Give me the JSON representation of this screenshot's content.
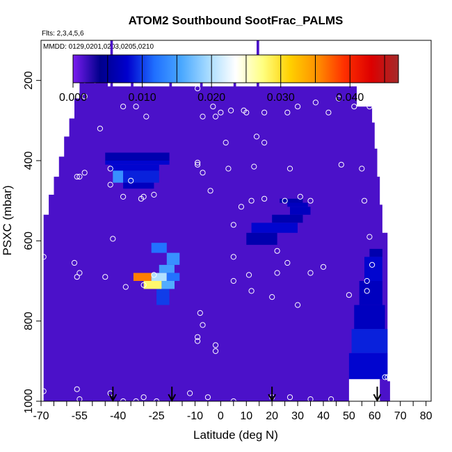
{
  "chart_data": {
    "type": "heatmap",
    "title": "ATOM2 Southbound SootFrac_PALMS",
    "subtitle": "Flts: 2,3,4,5,6",
    "annotation": "MMDD: 0129,0201,0203,0205,0210",
    "xlabel": "Latitude (deg N)",
    "ylabel": "PSXC (mbar)",
    "xlim": [
      -70,
      82
    ],
    "ylim": [
      1000,
      100
    ],
    "x_ticks": [
      -70,
      -55,
      -40,
      -25,
      -10,
      0,
      10,
      20,
      30,
      40,
      50,
      60,
      70,
      80
    ],
    "x_tick_labels": [
      "-70",
      "-55",
      "-40",
      "-25",
      "-10",
      "0",
      "10",
      "20",
      "30",
      "40",
      "50",
      "60",
      "70",
      "80"
    ],
    "y_ticks": [
      200,
      400,
      600,
      800,
      1000
    ],
    "y_tick_labels": [
      "200",
      "400",
      "600",
      "800",
      "1000"
    ],
    "colorbar": {
      "min": 0.0,
      "max": 0.047,
      "ticks": [
        0.0,
        0.01,
        0.02,
        0.03,
        0.04
      ],
      "tick_labels": [
        "0.000",
        "0.010",
        "0.020",
        "0.030",
        "0.040"
      ],
      "boundaries": [
        0.0,
        0.005,
        0.01,
        0.015,
        0.02,
        0.025,
        0.03,
        0.035,
        0.04,
        0.045
      ],
      "colors": [
        "#7a1cf0",
        "#00008b",
        "#0000cd",
        "#1f6fff",
        "#4aa8ff",
        "#a8dcff",
        "#ffffff",
        "#ffff80",
        "#ffd000",
        "#ff9000",
        "#ff3000",
        "#dd0000",
        "#a52a2a"
      ]
    },
    "background_value": 0.0015,
    "base_region": [
      [
        -69,
        1000
      ],
      [
        -69,
        535
      ],
      [
        -67,
        535
      ],
      [
        -67,
        485
      ],
      [
        -65,
        485
      ],
      [
        -65,
        440
      ],
      [
        -63,
        440
      ],
      [
        -63,
        390
      ],
      [
        -61,
        390
      ],
      [
        -61,
        340
      ],
      [
        -59,
        340
      ],
      [
        -59,
        295
      ],
      [
        -57,
        295
      ],
      [
        -57,
        245
      ],
      [
        -55,
        245
      ],
      [
        -55,
        200
      ],
      [
        -53,
        200
      ],
      [
        -53,
        165
      ],
      [
        -45,
        165
      ],
      [
        -45,
        195
      ],
      [
        -44,
        195
      ],
      [
        -44,
        215
      ],
      [
        -43,
        215
      ],
      [
        -43,
        100
      ],
      [
        -42,
        100
      ],
      [
        -42,
        215
      ],
      [
        -35,
        215
      ],
      [
        -35,
        180
      ],
      [
        -34,
        180
      ],
      [
        -34,
        215
      ],
      [
        -20,
        215
      ],
      [
        -20,
        180
      ],
      [
        -19,
        180
      ],
      [
        -19,
        215
      ],
      [
        -8,
        215
      ],
      [
        -8,
        195
      ],
      [
        -7,
        195
      ],
      [
        -7,
        215
      ],
      [
        5,
        215
      ],
      [
        5,
        180
      ],
      [
        6,
        180
      ],
      [
        6,
        215
      ],
      [
        14,
        215
      ],
      [
        14,
        100
      ],
      [
        15,
        100
      ],
      [
        15,
        215
      ],
      [
        53,
        215
      ],
      [
        53,
        265
      ],
      [
        59,
        265
      ],
      [
        59,
        305
      ],
      [
        60,
        305
      ],
      [
        60,
        370
      ],
      [
        61,
        370
      ],
      [
        61,
        440
      ],
      [
        62,
        440
      ],
      [
        62,
        510
      ],
      [
        63,
        510
      ],
      [
        63,
        580
      ],
      [
        65,
        580
      ],
      [
        65,
        950
      ],
      [
        66,
        950
      ],
      [
        66,
        1000
      ]
    ],
    "white_regions": [
      [
        [
          50,
          1000
        ],
        [
          50,
          945
        ],
        [
          62,
          945
        ],
        [
          62,
          1000
        ]
      ]
    ],
    "cells": [
      {
        "lat": [
          -45,
          -20
        ],
        "p": [
          380,
          400
        ],
        "value": 0.006
      },
      {
        "lat": [
          -45,
          -20
        ],
        "p": [
          400,
          410
        ],
        "value": 0.008
      },
      {
        "lat": [
          -43,
          -24
        ],
        "p": [
          410,
          425
        ],
        "value": 0.008
      },
      {
        "lat": [
          -42,
          -38
        ],
        "p": [
          425,
          455
        ],
        "value": 0.014
      },
      {
        "lat": [
          -38,
          -24
        ],
        "p": [
          425,
          455
        ],
        "value": 0.009
      },
      {
        "lat": [
          -38,
          -26
        ],
        "p": [
          455,
          470
        ],
        "value": 0.007
      },
      {
        "lat": [
          23,
          32
        ],
        "p": [
          495,
          505
        ],
        "value": 0.006
      },
      {
        "lat": [
          26,
          34
        ],
        "p": [
          505,
          515
        ],
        "value": 0.007
      },
      {
        "lat": [
          27,
          35
        ],
        "p": [
          515,
          535
        ],
        "value": 0.007
      },
      {
        "lat": [
          20,
          32
        ],
        "p": [
          535,
          555
        ],
        "value": 0.006
      },
      {
        "lat": [
          12,
          30
        ],
        "p": [
          555,
          580
        ],
        "value": 0.008
      },
      {
        "lat": [
          10,
          22
        ],
        "p": [
          580,
          610
        ],
        "value": 0.006
      },
      {
        "lat": [
          -27,
          -21
        ],
        "p": [
          605,
          630
        ],
        "value": 0.012
      },
      {
        "lat": [
          -21,
          -16
        ],
        "p": [
          630,
          660
        ],
        "value": 0.014
      },
      {
        "lat": [
          -24,
          -18
        ],
        "p": [
          660,
          680
        ],
        "value": 0.015
      },
      {
        "lat": [
          -34,
          -27
        ],
        "p": [
          680,
          700
        ],
        "value": 0.036
      },
      {
        "lat": [
          -27,
          -21
        ],
        "p": [
          680,
          700
        ],
        "value": 0.02
      },
      {
        "lat": [
          -21,
          -16
        ],
        "p": [
          680,
          700
        ],
        "value": 0.012
      },
      {
        "lat": [
          -30,
          -23
        ],
        "p": [
          700,
          720
        ],
        "value": 0.028
      },
      {
        "lat": [
          -23,
          -18
        ],
        "p": [
          700,
          720
        ],
        "value": 0.016
      },
      {
        "lat": [
          -25,
          -20
        ],
        "p": [
          720,
          760
        ],
        "value": 0.01
      },
      {
        "lat": [
          58,
          63
        ],
        "p": [
          620,
          640
        ],
        "value": 0.006
      },
      {
        "lat": [
          56,
          63
        ],
        "p": [
          640,
          700
        ],
        "value": 0.008
      },
      {
        "lat": [
          54,
          63
        ],
        "p": [
          700,
          760
        ],
        "value": 0.007
      },
      {
        "lat": [
          52,
          64
        ],
        "p": [
          760,
          820
        ],
        "value": 0.007
      },
      {
        "lat": [
          51,
          65
        ],
        "p": [
          820,
          880
        ],
        "value": 0.009
      },
      {
        "lat": [
          50,
          65
        ],
        "p": [
          880,
          945
        ],
        "value": 0.008
      }
    ],
    "points": [
      [
        -69,
        640
      ],
      [
        -69,
        975
      ],
      [
        -56,
        440
      ],
      [
        -55,
        440
      ],
      [
        -57,
        655
      ],
      [
        -56,
        690
      ],
      [
        -55,
        680
      ],
      [
        -56,
        970
      ],
      [
        -55,
        995
      ],
      [
        -53,
        200
      ],
      [
        -53,
        240
      ],
      [
        -53,
        430
      ],
      [
        -49,
        200
      ],
      [
        -47,
        320
      ],
      [
        -43,
        200
      ],
      [
        -43,
        420
      ],
      [
        -43,
        460
      ],
      [
        -42,
        595
      ],
      [
        -45,
        690
      ],
      [
        -43,
        980
      ],
      [
        -38,
        265
      ],
      [
        -35,
        450
      ],
      [
        -38,
        490
      ],
      [
        -37,
        715
      ],
      [
        -38,
        1000
      ],
      [
        -33,
        265
      ],
      [
        -31,
        495
      ],
      [
        -33,
        1000
      ],
      [
        -30,
        490
      ],
      [
        -30,
        710
      ],
      [
        -30,
        990
      ],
      [
        -29,
        290
      ],
      [
        -26,
        485
      ],
      [
        -26,
        685
      ],
      [
        -25,
        1000
      ],
      [
        -9,
        220
      ],
      [
        -9,
        405
      ],
      [
        -9,
        410
      ],
      [
        -7,
        290
      ],
      [
        -7,
        430
      ],
      [
        -4,
        475
      ],
      [
        -3,
        265
      ],
      [
        -2,
        290
      ],
      [
        -2,
        875
      ],
      [
        -8,
        780
      ],
      [
        -7,
        810
      ],
      [
        -9,
        840
      ],
      [
        -9,
        850
      ],
      [
        -12,
        980
      ],
      [
        -5,
        990
      ],
      [
        -2,
        860
      ],
      [
        0,
        280
      ],
      [
        2,
        355
      ],
      [
        3,
        420
      ],
      [
        4,
        275
      ],
      [
        5,
        560
      ],
      [
        5,
        640
      ],
      [
        5,
        700
      ],
      [
        5,
        1000
      ],
      [
        9,
        275
      ],
      [
        10,
        280
      ],
      [
        8,
        515
      ],
      [
        12,
        500
      ],
      [
        11,
        685
      ],
      [
        12,
        725
      ],
      [
        13,
        415
      ],
      [
        14,
        340
      ],
      [
        17,
        280
      ],
      [
        17,
        355
      ],
      [
        17,
        495
      ],
      [
        20,
        990
      ],
      [
        20,
        740
      ],
      [
        22,
        625
      ],
      [
        22,
        680
      ],
      [
        27,
        420
      ],
      [
        25,
        500
      ],
      [
        26,
        280
      ],
      [
        26,
        655
      ],
      [
        27,
        990
      ],
      [
        30,
        265
      ],
      [
        31,
        490
      ],
      [
        30,
        760
      ],
      [
        35,
        500
      ],
      [
        35,
        680
      ],
      [
        35,
        995
      ],
      [
        37,
        255
      ],
      [
        40,
        665
      ],
      [
        42,
        280
      ],
      [
        43,
        995
      ],
      [
        46,
        245
      ],
      [
        47,
        410
      ],
      [
        50,
        735
      ],
      [
        52,
        265
      ],
      [
        55,
        420
      ],
      [
        56,
        500
      ],
      [
        57,
        700
      ],
      [
        57,
        725
      ],
      [
        58,
        590
      ],
      [
        59,
        660
      ],
      [
        58,
        265
      ],
      [
        64,
        940
      ],
      [
        61,
        1000
      ],
      [
        65,
        940
      ]
    ],
    "arrows": [
      -42,
      -19,
      20,
      61
    ]
  }
}
